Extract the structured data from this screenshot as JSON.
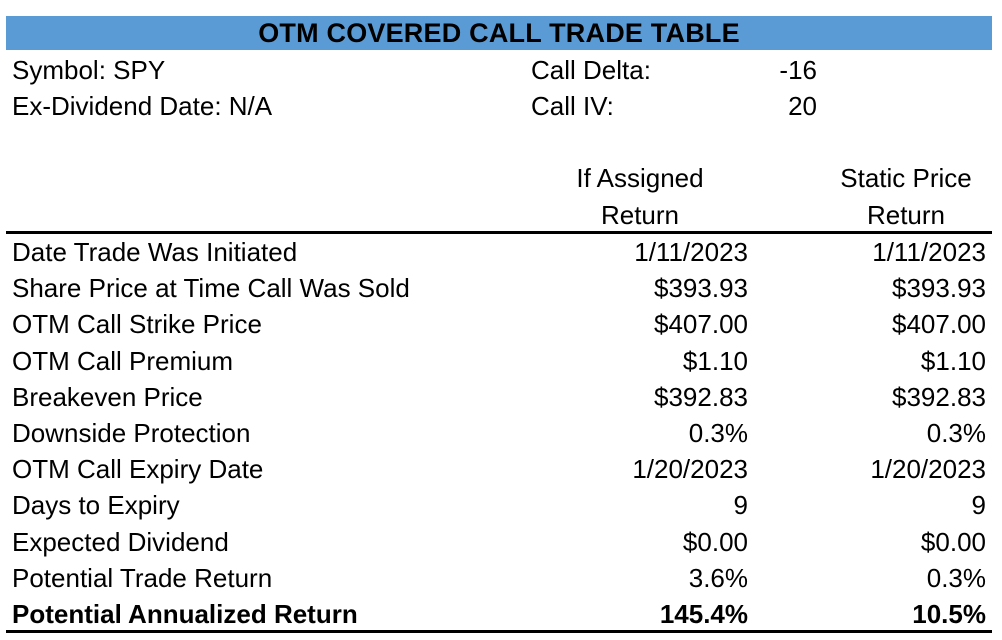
{
  "title": "OTM COVERED CALL TRADE TABLE",
  "meta": {
    "symbol_label": "Symbol: SPY",
    "exdiv_label": "Ex-Dividend Date:  N/A",
    "call_delta_label": "Call Delta:",
    "call_delta_value": "-16",
    "call_iv_label": "Call IV:",
    "call_iv_value": "20"
  },
  "columns": {
    "assigned_line1": "If Assigned",
    "assigned_line2": "Return",
    "static_line1": "Static Price",
    "static_line2": "Return"
  },
  "rows": [
    {
      "label": "Date Trade Was Initiated",
      "assigned": "1/11/2023",
      "static": "1/11/2023"
    },
    {
      "label": "Share Price at Time Call Was Sold",
      "assigned": "$393.93",
      "static": "$393.93"
    },
    {
      "label": "OTM Call Strike Price",
      "assigned": "$407.00",
      "static": "$407.00"
    },
    {
      "label": "OTM Call Premium",
      "assigned": "$1.10",
      "static": "$1.10"
    },
    {
      "label": "Breakeven Price",
      "assigned": "$392.83",
      "static": "$392.83"
    },
    {
      "label": "Downside Protection",
      "assigned": "0.3%",
      "static": "0.3%"
    },
    {
      "label": "OTM Call Expiry Date",
      "assigned": "1/20/2023",
      "static": "1/20/2023"
    },
    {
      "label": "Days to Expiry",
      "assigned": "9",
      "static": "9"
    },
    {
      "label": "Expected Dividend",
      "assigned": "$0.00",
      "static": "$0.00"
    },
    {
      "label": "Potential Trade Return",
      "assigned": "3.6%",
      "static": "0.3%"
    },
    {
      "label": "Potential Annualized Return",
      "assigned": "145.4%",
      "static": "10.5%"
    }
  ]
}
